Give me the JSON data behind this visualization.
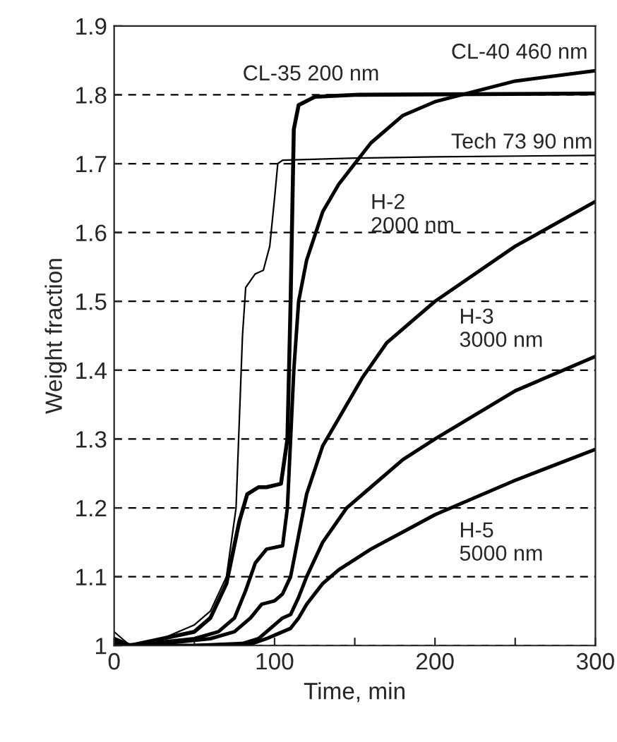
{
  "chart_data": {
    "type": "line",
    "xlabel": "Time, min",
    "ylabel": "Weight fraction",
    "xlim": [
      0,
      300
    ],
    "ylim": [
      1,
      1.9
    ],
    "xticks": [
      0,
      {
        "value": 50,
        "label": null
      },
      100,
      {
        "value": 150,
        "label": null
      },
      200,
      {
        "value": 250,
        "label": null
      },
      300
    ],
    "yticks": [
      1,
      1.1,
      1.2,
      1.3,
      1.4,
      1.5,
      1.6,
      1.7,
      1.8,
      1.9
    ],
    "grid": "y",
    "line_style": "solid",
    "marker": "none",
    "legend": false,
    "series": [
      {
        "color": "#000000",
        "x": [
          0,
          10,
          30,
          50,
          60,
          70,
          76,
          80,
          82,
          88,
          93,
          97,
          100,
          102,
          105,
          150,
          200,
          300
        ],
        "values": [
          1.02,
          1.0,
          1.01,
          1.03,
          1.05,
          1.1,
          1.2,
          1.45,
          1.52,
          1.54,
          1.545,
          1.58,
          1.65,
          1.7,
          1.705,
          1.708,
          1.71,
          1.712
        ]
      },
      {
        "color": "#000000",
        "x": [
          0,
          10,
          30,
          50,
          60,
          70,
          78,
          83,
          90,
          95,
          104,
          108,
          110,
          112,
          115,
          125,
          150,
          300
        ],
        "values": [
          1.01,
          1.0,
          1.01,
          1.02,
          1.04,
          1.09,
          1.18,
          1.22,
          1.23,
          1.23,
          1.235,
          1.3,
          1.5,
          1.75,
          1.785,
          1.797,
          1.8,
          1.802
        ]
      },
      {
        "color": "#000000",
        "x": [
          0,
          10,
          30,
          50,
          65,
          75,
          82,
          88,
          95,
          105,
          108,
          110,
          112,
          115,
          120,
          130,
          140,
          160,
          180,
          200,
          250,
          300
        ],
        "values": [
          1.005,
          1.0,
          1.005,
          1.01,
          1.02,
          1.04,
          1.08,
          1.12,
          1.14,
          1.145,
          1.2,
          1.3,
          1.4,
          1.5,
          1.56,
          1.63,
          1.67,
          1.73,
          1.77,
          1.79,
          1.82,
          1.835
        ]
      },
      {
        "color": "#000000",
        "x": [
          0,
          30,
          60,
          75,
          85,
          92,
          100,
          105,
          110,
          115,
          120,
          130,
          140,
          155,
          170,
          200,
          250,
          300
        ],
        "values": [
          1.0,
          1.003,
          1.01,
          1.02,
          1.04,
          1.06,
          1.065,
          1.075,
          1.1,
          1.16,
          1.22,
          1.29,
          1.33,
          1.39,
          1.44,
          1.5,
          1.58,
          1.645
        ]
      },
      {
        "color": "#000000",
        "x": [
          0,
          50,
          80,
          90,
          100,
          105,
          110,
          115,
          120,
          130,
          145,
          160,
          180,
          200,
          250,
          300
        ],
        "values": [
          1.0,
          1.0,
          1.003,
          1.01,
          1.03,
          1.04,
          1.045,
          1.07,
          1.1,
          1.15,
          1.2,
          1.23,
          1.27,
          1.3,
          1.37,
          1.42
        ]
      },
      {
        "color": "#000000",
        "x": [
          0,
          50,
          85,
          95,
          100,
          110,
          115,
          120,
          130,
          140,
          160,
          180,
          200,
          250,
          300
        ],
        "values": [
          1.0,
          1.0,
          1.002,
          1.01,
          1.015,
          1.025,
          1.04,
          1.06,
          1.09,
          1.11,
          1.14,
          1.165,
          1.19,
          1.24,
          1.285
        ]
      }
    ],
    "annotations": [
      "CL-35 200 nm",
      "CL-40 460 nm",
      "Tech 73 90 nm",
      "H-2\n2000 nm",
      "H-3\n3000 nm",
      "H-5\n5000 nm"
    ]
  }
}
